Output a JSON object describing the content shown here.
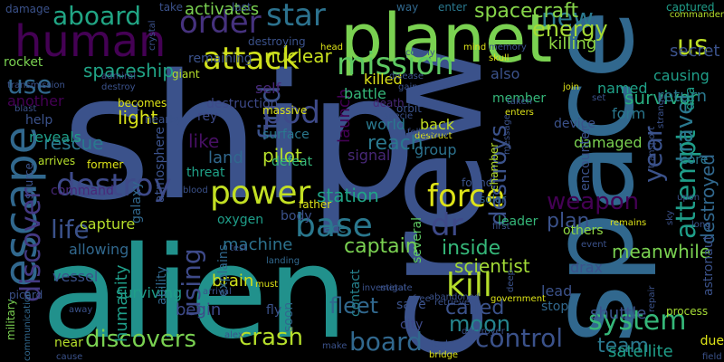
{
  "background": "#000000",
  "palette": {
    "dark_purple": "#440154",
    "purple": "#472c7a",
    "indigo": "#3b518b",
    "blue": "#2c718e",
    "teal": "#21908d",
    "green_teal": "#27ad81",
    "green": "#5cc863",
    "lime": "#aadc32",
    "yellow": "#fde725"
  },
  "words": [
    {
      "text": "ship",
      "color": "#3b528b"
    },
    {
      "text": "alien",
      "color": "#21918c"
    },
    {
      "text": "crew",
      "color": "#3b528b"
    },
    {
      "text": "space",
      "color": "#31688e"
    },
    {
      "text": "planet",
      "color": "#7ad151"
    },
    {
      "text": "human",
      "color": "#440154"
    },
    {
      "text": "escape",
      "color": "#31688e"
    },
    {
      "text": "destroy",
      "color": "#3e4a89"
    },
    {
      "text": "power",
      "color": "#c2df23"
    },
    {
      "text": "attack",
      "color": "#d0e11c"
    },
    {
      "text": "mission",
      "color": "#5ec962"
    },
    {
      "text": "find",
      "color": "#3b528b"
    },
    {
      "text": "kill",
      "color": "#b5de2b"
    },
    {
      "text": "crash",
      "color": "#b5de2b"
    },
    {
      "text": "discovers",
      "color": "#7ad151"
    },
    {
      "text": "board",
      "color": "#31688e"
    },
    {
      "text": "control",
      "color": "#3b528b"
    },
    {
      "text": "system",
      "color": "#35b779"
    },
    {
      "text": "life",
      "color": "#3b528b"
    },
    {
      "text": "base",
      "color": "#2a788e"
    },
    {
      "text": "force",
      "color": "#dde318"
    },
    {
      "text": "pod",
      "color": "#3e4a89"
    },
    {
      "text": "discover",
      "color": "#443983"
    },
    {
      "text": "star",
      "color": "#2c728e"
    },
    {
      "text": "order",
      "color": "#46327e"
    },
    {
      "text": "aboard",
      "color": "#21a685"
    },
    {
      "text": "new",
      "color": "#2a788e"
    },
    {
      "text": "us",
      "color": "#bddf26"
    },
    {
      "text": "use",
      "color": "#31688e"
    },
    {
      "text": "attempt",
      "color": "#1f9e89"
    },
    {
      "text": "dr",
      "color": "#3e4a89"
    },
    {
      "text": "travel",
      "color": "#2a788e"
    },
    {
      "text": "year",
      "color": "#3b528b"
    },
    {
      "text": "using",
      "color": "#3e4a89"
    },
    {
      "text": "energy",
      "color": "#a5db36"
    },
    {
      "text": "nuclear",
      "color": "#c8e020"
    },
    {
      "text": "spaceship",
      "color": "#20a486"
    },
    {
      "text": "survivor",
      "color": "#28ae80"
    },
    {
      "text": "return",
      "color": "#2a788e"
    },
    {
      "text": "secret",
      "color": "#3b528b"
    },
    {
      "text": "spacecraft",
      "color": "#86d549"
    },
    {
      "text": "station",
      "color": "#20a486"
    },
    {
      "text": "moon",
      "color": "#25858e"
    },
    {
      "text": "fleet",
      "color": "#31688e"
    },
    {
      "text": "scientist",
      "color": "#a2da37"
    },
    {
      "text": "pilot",
      "color": "#b5de2b"
    },
    {
      "text": "light",
      "color": "#d8e219"
    },
    {
      "text": "rescue",
      "color": "#2a788e"
    },
    {
      "text": "reach",
      "color": "#2a788e"
    },
    {
      "text": "launch",
      "color": "#440154"
    },
    {
      "text": "destroys",
      "color": "#3b528b"
    },
    {
      "text": "destroyed",
      "color": "#31688e"
    },
    {
      "text": "weapon",
      "color": "#440154"
    },
    {
      "text": "plan",
      "color": "#3b528b"
    },
    {
      "text": "inside",
      "color": "#35b779"
    },
    {
      "text": "machine",
      "color": "#2c728e"
    },
    {
      "text": "captain",
      "color": "#7ad151"
    },
    {
      "text": "called",
      "color": "#3b528b"
    },
    {
      "text": "like",
      "color": "#471063"
    },
    {
      "text": "land",
      "color": "#31688e"
    },
    {
      "text": "humanity",
      "color": "#1f9e89"
    },
    {
      "text": "begin",
      "color": "#3e4a89"
    },
    {
      "text": "brain",
      "color": "#d0e11c"
    },
    {
      "text": "team",
      "color": "#2a788e"
    },
    {
      "text": "shuttle",
      "color": "#3b528b"
    },
    {
      "text": "satellite",
      "color": "#1f9e89"
    },
    {
      "text": "killing",
      "color": "#8fd744"
    },
    {
      "text": "named",
      "color": "#1fa188"
    },
    {
      "text": "causing",
      "color": "#1f9e89"
    },
    {
      "text": "battle",
      "color": "#35b779"
    },
    {
      "text": "killed",
      "color": "#dde318"
    },
    {
      "text": "also",
      "color": "#3b528b"
    },
    {
      "text": "form",
      "color": "#2a788e"
    },
    {
      "text": "damaged",
      "color": "#7ad151"
    },
    {
      "text": "encounter",
      "color": "#3b528b"
    },
    {
      "text": "remaining",
      "color": "#3b528b"
    },
    {
      "text": "activates",
      "color": "#7ad151"
    },
    {
      "text": "destruction",
      "color": "#3e4a89"
    },
    {
      "text": "self",
      "color": "#482878"
    },
    {
      "text": "surface",
      "color": "#2a788e"
    },
    {
      "text": "signal",
      "color": "#482878"
    },
    {
      "text": "defeat",
      "color": "#35b779"
    },
    {
      "text": "group",
      "color": "#2c728e"
    },
    {
      "text": "back",
      "color": "#c2df23"
    },
    {
      "text": "world",
      "color": "#2a788e"
    },
    {
      "text": "threat",
      "color": "#1fa188"
    },
    {
      "text": "galaxy",
      "color": "#31688e"
    },
    {
      "text": "atmosphere",
      "color": "#3b528b"
    },
    {
      "text": "reveals",
      "color": "#1f9e89"
    },
    {
      "text": "help",
      "color": "#3b528b"
    },
    {
      "text": "another",
      "color": "#440154"
    },
    {
      "text": "rocket",
      "color": "#7ad151"
    },
    {
      "text": "command",
      "color": "#482878"
    },
    {
      "text": "capture",
      "color": "#b5de2b"
    },
    {
      "text": "allowing",
      "color": "#31688e"
    },
    {
      "text": "vessel",
      "color": "#3b528b"
    },
    {
      "text": "military",
      "color": "#7ad151"
    },
    {
      "text": "surviving",
      "color": "#1f9e89"
    },
    {
      "text": "ability",
      "color": "#31688e"
    },
    {
      "text": "explains",
      "color": "#31688e"
    },
    {
      "text": "oxygen",
      "color": "#1f9e89"
    },
    {
      "text": "body",
      "color": "#3b528b"
    },
    {
      "text": "race",
      "color": "#2a788e"
    },
    {
      "text": "several",
      "color": "#5ec962"
    },
    {
      "text": "contact",
      "color": "#26828e"
    },
    {
      "text": "save",
      "color": "#3b528b"
    },
    {
      "text": "city",
      "color": "#3e4a89"
    },
    {
      "text": "leader",
      "color": "#35b779"
    },
    {
      "text": "device",
      "color": "#3b528b"
    },
    {
      "text": "lead",
      "color": "#3b528b"
    },
    {
      "text": "stop",
      "color": "#31688e"
    },
    {
      "text": "others",
      "color": "#8fd744"
    },
    {
      "text": "meanwhile",
      "color": "#7ad151"
    },
    {
      "text": "drax",
      "color": "#3b528b"
    },
    {
      "text": "process",
      "color": "#a5db36"
    },
    {
      "text": "astronaut",
      "color": "#3b528b"
    },
    {
      "text": "core",
      "color": "#2a788e"
    },
    {
      "text": "dna",
      "color": "#1f9e89"
    },
    {
      "text": "member",
      "color": "#35b779"
    },
    {
      "text": "due",
      "color": "#dde318"
    },
    {
      "text": "soon",
      "color": "#31688e"
    },
    {
      "text": "fly",
      "color": "#3b528b"
    },
    {
      "text": "rey",
      "color": "#3e4a89"
    },
    {
      "text": "damage",
      "color": "#3b528b"
    },
    {
      "text": "take",
      "color": "#3b528b"
    },
    {
      "text": "last",
      "color": "#3b528b"
    },
    {
      "text": "way",
      "color": "#31688e"
    },
    {
      "text": "enter",
      "color": "#2a788e"
    },
    {
      "text": "captured",
      "color": "#1f9e89"
    },
    {
      "text": "giant",
      "color": "#b5de2b"
    },
    {
      "text": "destroying",
      "color": "#3b528b"
    },
    {
      "text": "massive",
      "color": "#dde318"
    },
    {
      "text": "orbit",
      "color": "#3b528b"
    },
    {
      "text": "death",
      "color": "#482878"
    },
    {
      "text": "plant",
      "color": "#3b528b"
    },
    {
      "text": "nearby",
      "color": "#3b528b"
    },
    {
      "text": "becomes",
      "color": "#dde318"
    },
    {
      "text": "admiral",
      "color": "#3b528b"
    },
    {
      "text": "transmission",
      "color": "#3b528b"
    },
    {
      "text": "blast",
      "color": "#3b528b"
    },
    {
      "text": "arrives",
      "color": "#b5de2b"
    },
    {
      "text": "former",
      "color": "#dde318"
    },
    {
      "text": "source",
      "color": "#3b528b"
    },
    {
      "text": "father",
      "color": "#dde318"
    },
    {
      "text": "found",
      "color": "#3b528b"
    },
    {
      "text": "solar",
      "color": "#31688e"
    },
    {
      "text": "chamber",
      "color": "#b5de2b"
    },
    {
      "text": "blood",
      "color": "#3b528b"
    },
    {
      "text": "test",
      "color": "#3b528b"
    },
    {
      "text": "landing",
      "color": "#31688e"
    },
    {
      "text": "must",
      "color": "#dde318"
    },
    {
      "text": "arrival",
      "color": "#3b528b"
    },
    {
      "text": "alex",
      "color": "#3b528b"
    },
    {
      "text": "investigate",
      "color": "#3b528b"
    },
    {
      "text": "make",
      "color": "#3b528b"
    },
    {
      "text": "metal",
      "color": "#3b528b"
    },
    {
      "text": "free",
      "color": "#3b528b"
    },
    {
      "text": "abandoned",
      "color": "#3b528b"
    },
    {
      "text": "government",
      "color": "#dde318"
    },
    {
      "text": "fuel",
      "color": "#3b528b"
    },
    {
      "text": "bridge",
      "color": "#dde318"
    },
    {
      "text": "destroyer",
      "color": "#3b528b"
    },
    {
      "text": "cause",
      "color": "#3b528b"
    },
    {
      "text": "near",
      "color": "#b5de2b"
    },
    {
      "text": "picard",
      "color": "#3b528b"
    },
    {
      "text": "communication",
      "color": "#31688e"
    },
    {
      "text": "retrieve",
      "color": "#3b528b"
    },
    {
      "text": "first",
      "color": "#3b528b"
    },
    {
      "text": "deep",
      "color": "#3b528b"
    },
    {
      "text": "remains",
      "color": "#dde318"
    },
    {
      "text": "event",
      "color": "#3b528b"
    },
    {
      "text": "repair",
      "color": "#3b528b"
    },
    {
      "text": "upon",
      "color": "#3b528b"
    },
    {
      "text": "long",
      "color": "#3b528b"
    },
    {
      "text": "field",
      "color": "#3b528b"
    },
    {
      "text": "commander",
      "color": "#b5de2b"
    },
    {
      "text": "crystal",
      "color": "#3b528b"
    },
    {
      "text": "head",
      "color": "#dde318"
    },
    {
      "text": "skull",
      "color": "#dde318"
    },
    {
      "text": "mind",
      "color": "#dde318"
    },
    {
      "text": "memory",
      "color": "#3b528b"
    },
    {
      "text": "join",
      "color": "#dde318"
    },
    {
      "text": "set",
      "color": "#3b528b"
    },
    {
      "text": "taken",
      "color": "#3b528b"
    },
    {
      "text": "enters",
      "color": "#dde318"
    },
    {
      "text": "specie",
      "color": "#3b528b"
    },
    {
      "text": "destruct",
      "color": "#dde318"
    },
    {
      "text": "following",
      "color": "#3b528b"
    },
    {
      "text": "transport",
      "color": "#3b528b"
    },
    {
      "text": "strange",
      "color": "#3b528b"
    },
    {
      "text": "message",
      "color": "#3b528b"
    },
    {
      "text": "colony",
      "color": "#3b528b"
    },
    {
      "text": "disease",
      "color": "#3b528b"
    },
    {
      "text": "gain",
      "color": "#3b528b"
    },
    {
      "text": "sky",
      "color": "#3b528b"
    },
    {
      "text": "away",
      "color": "#3b528b"
    },
    {
      "text": "destroy",
      "color": "#3b528b"
    }
  ]
}
